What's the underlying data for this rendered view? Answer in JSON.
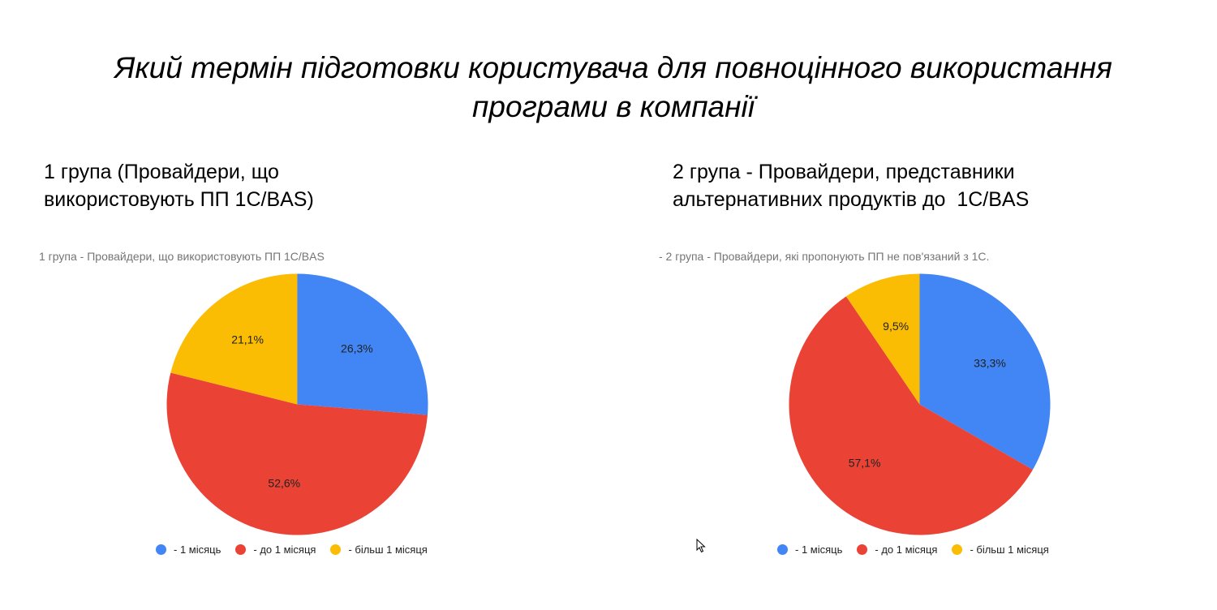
{
  "slide": {
    "title_lines": [
      "Який термін підготовки користувача для повноцінного використання",
      "програми в компанії"
    ]
  },
  "groups": [
    {
      "heading_lines": [
        "1 група (Провайдери, що",
        "використовують ПП 1С/BAS)"
      ]
    },
    {
      "heading_lines": [
        "2 група - Провайдери, представники",
        "альтернативних продуктів до  1С/BAS"
      ]
    }
  ],
  "chart_data": [
    {
      "type": "pie",
      "title": "1 група -  Провайдери, що використовують ПП 1С/BAS",
      "categories": [
        "- 1 місяць",
        "- до 1 місяця",
        "- більш 1 місяця"
      ],
      "values": [
        26.3,
        52.6,
        21.1
      ],
      "value_labels": [
        "26,3%",
        "52,6%",
        "21,1%"
      ],
      "colors": [
        "#4285F4",
        "#EA4335",
        "#FBBC04"
      ],
      "start_angle": "12 o'clock",
      "direction": "clockwise",
      "legend": "bottom"
    },
    {
      "type": "pie",
      "title": "- 2 група - Провайдери, які пропонують ПП не пов'язаний з 1С.",
      "categories": [
        "- 1 місяць",
        "- до 1 місяця",
        "- більш 1 місяця"
      ],
      "values": [
        33.3,
        57.1,
        9.5
      ],
      "value_labels": [
        "33,3%",
        "57,1%",
        "9,5%"
      ],
      "colors": [
        "#4285F4",
        "#EA4335",
        "#FBBC04"
      ],
      "start_angle": "12 o'clock",
      "direction": "clockwise",
      "legend": "bottom"
    }
  ],
  "icons": {
    "cursor": "mouse-pointer-icon"
  }
}
